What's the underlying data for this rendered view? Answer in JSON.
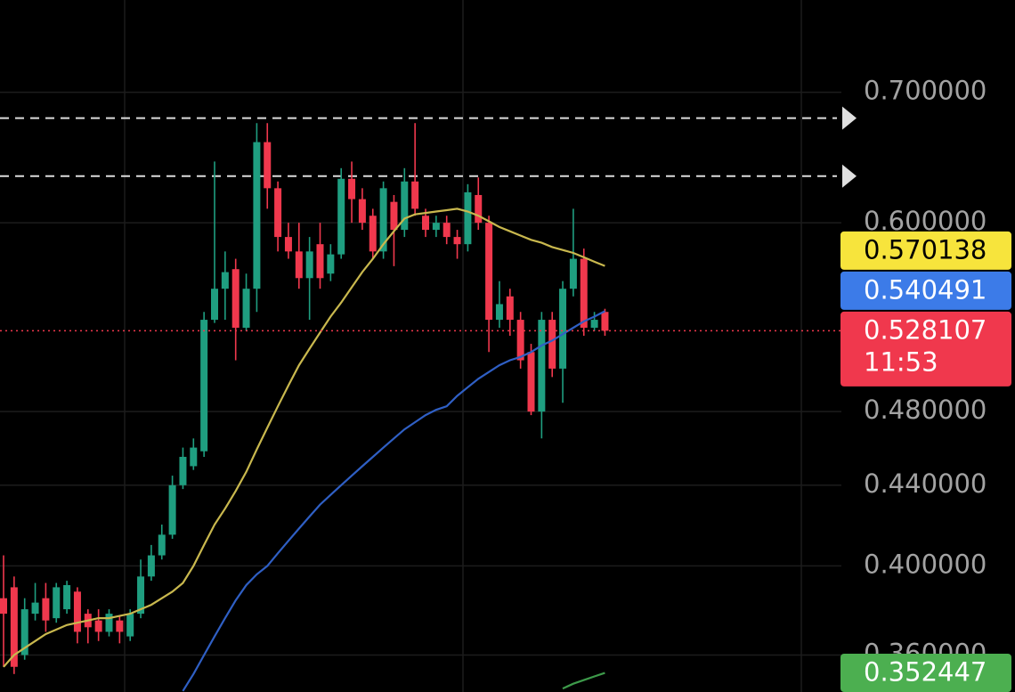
{
  "chart_data": {
    "type": "candlestick",
    "log_scale": true,
    "grid": true,
    "ylim": [
      0.3446,
      0.7807
    ],
    "yticks": [
      {
        "value": 0.36,
        "label": "0.360000"
      },
      {
        "value": 0.4,
        "label": "0.400000"
      },
      {
        "value": 0.44,
        "label": "0.440000"
      },
      {
        "value": 0.48,
        "label": "0.480000"
      },
      {
        "value": 0.6,
        "label": "0.600000"
      },
      {
        "value": 0.7,
        "label": "0.700000"
      }
    ],
    "up_color": "#1f9e80",
    "down_color": "#f0384d",
    "open": [
      0.385,
      0.39,
      0.36,
      0.378,
      0.385,
      0.376,
      0.38,
      0.388,
      0.378,
      0.375,
      0.37,
      0.375,
      0.368,
      0.378,
      0.395,
      0.405,
      0.415,
      0.44,
      0.45,
      0.458,
      0.535,
      0.555,
      0.568,
      0.53,
      0.555,
      0.66,
      0.625,
      0.59,
      0.58,
      0.562,
      0.585,
      0.565,
      0.578,
      0.632,
      0.617,
      0.605,
      0.58,
      0.615,
      0.595,
      0.63,
      0.605,
      0.595,
      0.6,
      0.59,
      0.585,
      0.62,
      0.6,
      0.535,
      0.55,
      0.535,
      0.515,
      0.48,
      0.535,
      0.505,
      0.555,
      0.575,
      0.53,
      0.54
    ],
    "high": [
      0.405,
      0.395,
      0.385,
      0.392,
      0.392,
      0.392,
      0.393,
      0.39,
      0.38,
      0.38,
      0.38,
      0.377,
      0.38,
      0.403,
      0.41,
      0.42,
      0.445,
      0.46,
      0.465,
      0.54,
      0.645,
      0.58,
      0.575,
      0.565,
      0.675,
      0.675,
      0.63,
      0.6,
      0.6,
      0.59,
      0.6,
      0.585,
      0.64,
      0.645,
      0.625,
      0.61,
      0.63,
      0.62,
      0.64,
      0.675,
      0.61,
      0.605,
      0.605,
      0.595,
      0.628,
      0.633,
      0.605,
      0.56,
      0.555,
      0.54,
      0.52,
      0.54,
      0.54,
      0.56,
      0.61,
      0.582,
      0.54,
      0.542
    ],
    "low": [
      0.355,
      0.352,
      0.358,
      0.375,
      0.37,
      0.374,
      0.378,
      0.365,
      0.365,
      0.366,
      0.368,
      0.365,
      0.366,
      0.376,
      0.393,
      0.403,
      0.413,
      0.438,
      0.448,
      0.455,
      0.533,
      0.535,
      0.51,
      0.528,
      0.54,
      0.61,
      0.58,
      0.575,
      0.555,
      0.535,
      0.555,
      0.56,
      0.575,
      0.6,
      0.595,
      0.575,
      0.575,
      0.57,
      0.59,
      0.605,
      0.59,
      0.59,
      0.585,
      0.575,
      0.58,
      0.595,
      0.515,
      0.53,
      0.525,
      0.505,
      0.478,
      0.465,
      0.5,
      0.485,
      0.55,
      0.525,
      0.528,
      0.525
    ],
    "close": [
      0.378,
      0.355,
      0.38,
      0.383,
      0.375,
      0.39,
      0.391,
      0.37,
      0.372,
      0.37,
      0.378,
      0.37,
      0.378,
      0.395,
      0.405,
      0.415,
      0.44,
      0.455,
      0.46,
      0.535,
      0.555,
      0.566,
      0.53,
      0.555,
      0.66,
      0.625,
      0.59,
      0.58,
      0.562,
      0.58,
      0.562,
      0.578,
      0.632,
      0.617,
      0.6,
      0.58,
      0.625,
      0.595,
      0.63,
      0.61,
      0.595,
      0.6,
      0.59,
      0.585,
      0.622,
      0.6,
      0.535,
      0.545,
      0.535,
      0.51,
      0.48,
      0.535,
      0.505,
      0.555,
      0.575,
      0.53,
      0.535,
      0.528107
    ],
    "lines": [
      {
        "color": "#c9b84e",
        "values": [
          0.355,
          0.36,
          0.363,
          0.366,
          0.369,
          0.371,
          0.373,
          0.374,
          0.375,
          0.376,
          0.376,
          0.377,
          0.378,
          0.38,
          0.382,
          0.385,
          0.388,
          0.392,
          0.4,
          0.41,
          0.42,
          0.428,
          0.437,
          0.447,
          0.459,
          0.471,
          0.483,
          0.495,
          0.507,
          0.517,
          0.527,
          0.537,
          0.546,
          0.556,
          0.566,
          0.575,
          0.585,
          0.594,
          0.603,
          0.606,
          0.607,
          0.608,
          0.609,
          0.61,
          0.608,
          0.605,
          0.601,
          0.597,
          0.594,
          0.591,
          0.588,
          0.586,
          0.583,
          0.581,
          0.579,
          0.576,
          0.573,
          0.570138
        ]
      },
      {
        "color": "#2f5fc4",
        "values": [
          null,
          null,
          null,
          null,
          null,
          null,
          null,
          null,
          null,
          null,
          null,
          null,
          null,
          null,
          null,
          null,
          null,
          0.345,
          0.352,
          0.36,
          0.368,
          0.376,
          0.384,
          0.391,
          0.396,
          0.4,
          0.406,
          0.412,
          0.418,
          0.424,
          0.43,
          0.435,
          0.44,
          0.445,
          0.45,
          0.455,
          0.46,
          0.465,
          0.47,
          0.474,
          0.478,
          0.481,
          0.483,
          0.489,
          0.494,
          0.499,
          0.503,
          0.507,
          0.51,
          0.512,
          0.515,
          0.519,
          0.522,
          0.526,
          0.53,
          0.534,
          0.537,
          0.540491
        ]
      },
      {
        "color": "#3d9a4a",
        "values": [
          null,
          null,
          null,
          null,
          null,
          null,
          null,
          null,
          null,
          null,
          null,
          null,
          null,
          null,
          null,
          null,
          null,
          null,
          null,
          null,
          null,
          null,
          null,
          null,
          null,
          null,
          null,
          null,
          null,
          null,
          null,
          null,
          null,
          null,
          null,
          null,
          null,
          null,
          null,
          null,
          null,
          null,
          null,
          null,
          null,
          null,
          null,
          null,
          null,
          null,
          null,
          null,
          null,
          0.346,
          0.348,
          0.3495,
          0.351,
          0.352447
        ]
      }
    ],
    "levels": [
      0.679,
      0.634
    ],
    "price_tags": [
      {
        "value": 0.570138,
        "color": "#f7e43c",
        "text_color": "#000000"
      },
      {
        "value": 0.540491,
        "color": "#3c7be8",
        "text_color": "#ffffff"
      },
      {
        "value": 0.528107,
        "color": "#f0384d",
        "text_color": "#ffffff"
      },
      {
        "value": 0.352447,
        "color": "#4caf50",
        "text_color": "#ffffff"
      }
    ],
    "countdown": "11:53"
  }
}
